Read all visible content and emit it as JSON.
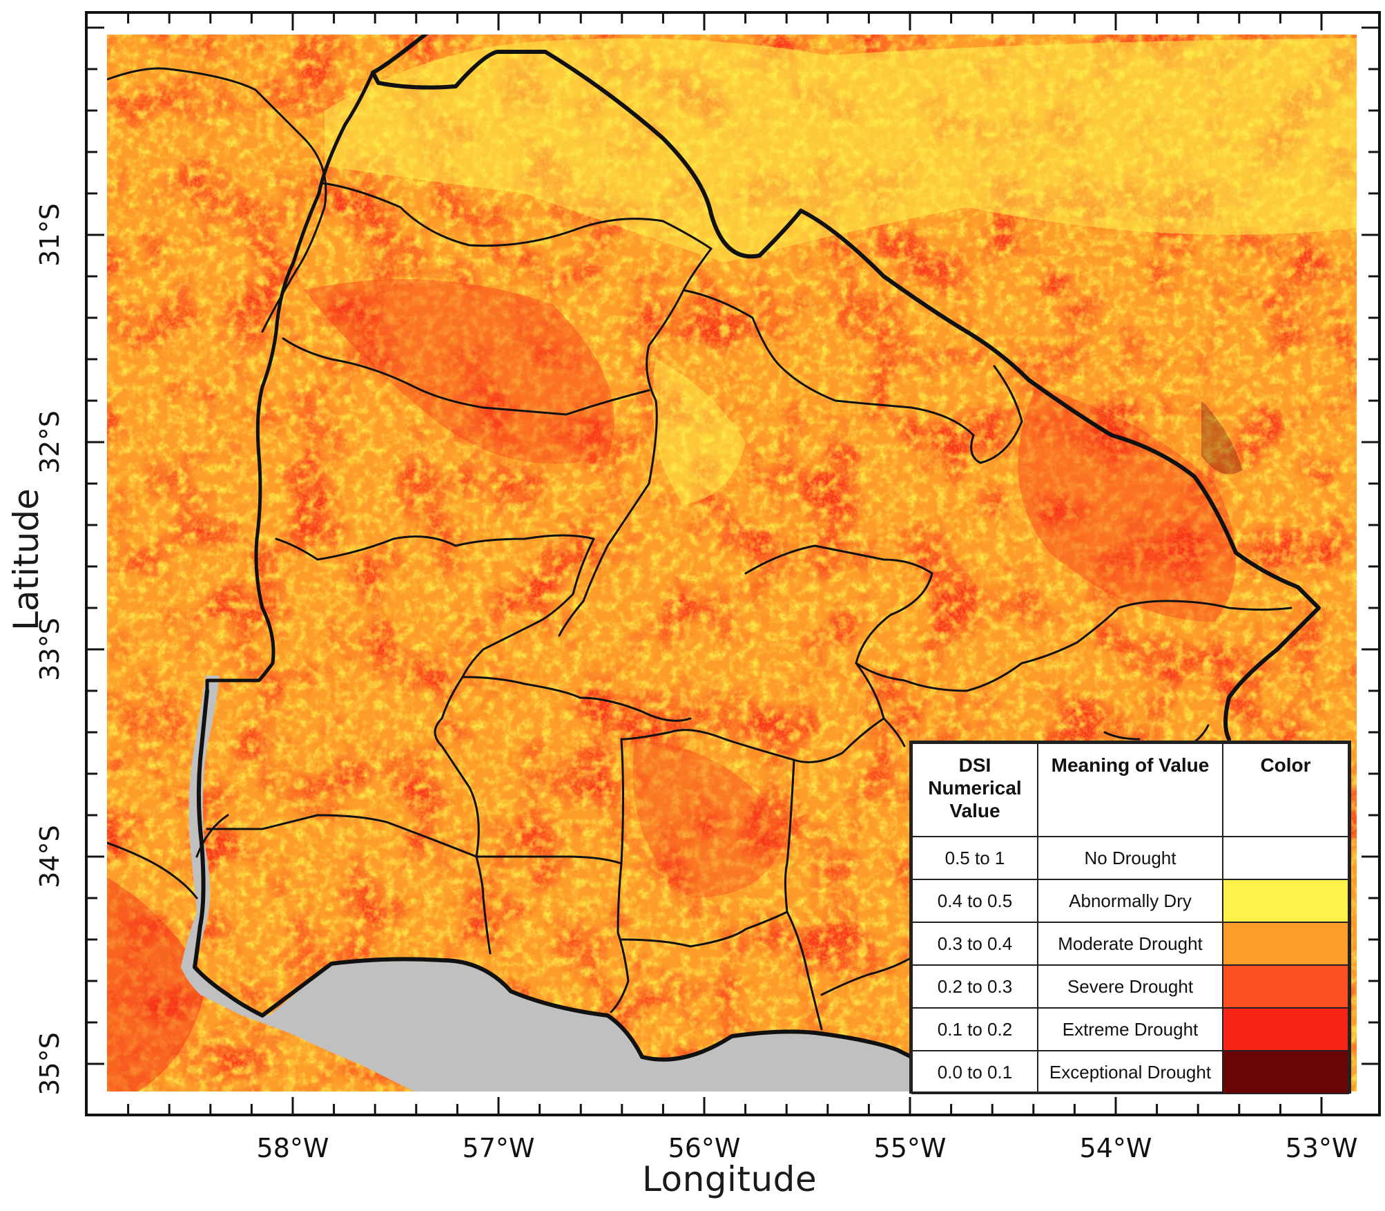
{
  "axes": {
    "x_title": "Longitude",
    "y_title": "Latitude",
    "x_ticks": [
      {
        "lon": -58,
        "label": "58°W"
      },
      {
        "lon": -57,
        "label": "57°W"
      },
      {
        "lon": -56,
        "label": "56°W"
      },
      {
        "lon": -55,
        "label": "55°W"
      },
      {
        "lon": -54,
        "label": "54°W"
      },
      {
        "lon": -53,
        "label": "53°W"
      }
    ],
    "y_ticks": [
      {
        "lat": -31,
        "label": "31°S"
      },
      {
        "lat": -32,
        "label": "32°S"
      },
      {
        "lat": -33,
        "label": "33°S"
      },
      {
        "lat": -34,
        "label": "34°S"
      },
      {
        "lat": -35,
        "label": "35°S"
      }
    ]
  },
  "colors": {
    "no_data_water": "#c0c0c0",
    "boundary": "#111111"
  },
  "legend": {
    "headers": [
      "DSI Numerical Value",
      "Meaning of Value",
      "Color"
    ],
    "rows": [
      {
        "range": "0.5 to 1",
        "meaning": "No Drought",
        "color": "#ffffff"
      },
      {
        "range": "0.4 to 0.5",
        "meaning": "Abnormally Dry",
        "color": "#fdf14a"
      },
      {
        "range": "0.3 to 0.4",
        "meaning": "Moderate Drought",
        "color": "#fd9c2b"
      },
      {
        "range": "0.2 to 0.3",
        "meaning": "Severe Drought",
        "color": "#fd4e22"
      },
      {
        "range": "0.1 to 0.2",
        "meaning": "Extreme Drought",
        "color": "#f52416"
      },
      {
        "range": "0.0 to 0.1",
        "meaning": "Exceptional Drought",
        "color": "#6a0505"
      }
    ]
  }
}
